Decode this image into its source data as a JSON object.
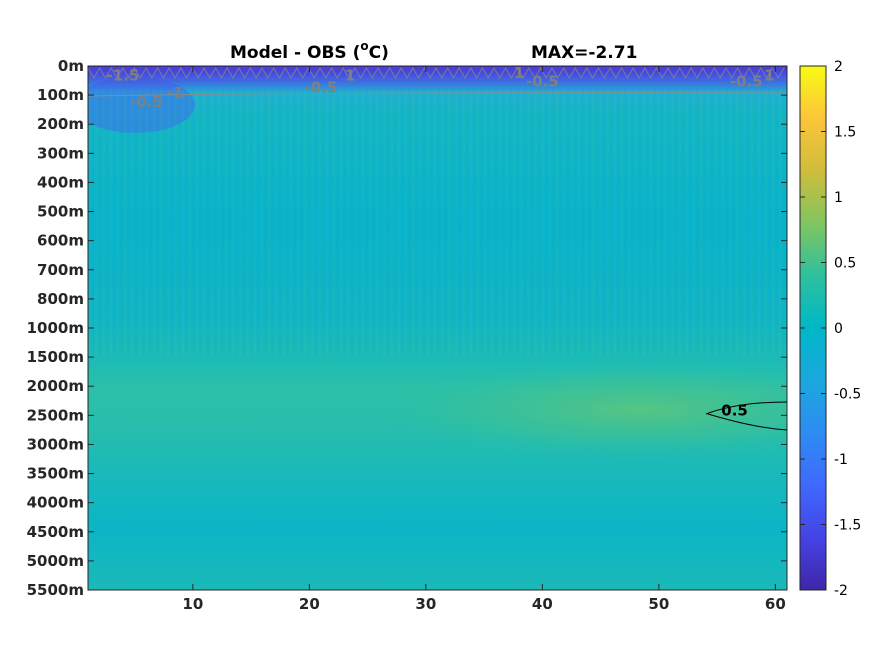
{
  "chart_data": {
    "type": "heatmap",
    "title_left": "Model - OBS (",
    "title_unit": "C)",
    "title_degree": "o",
    "title_right": "MAX=-2.71",
    "xlabel": "",
    "ylabel": "",
    "xlim": [
      1,
      61
    ],
    "x_ticks": [
      10,
      20,
      30,
      40,
      50,
      60
    ],
    "y_ticks": [
      "0m",
      "100m",
      "200m",
      "300m",
      "400m",
      "500m",
      "600m",
      "700m",
      "800m",
      "1000m",
      "1500m",
      "2000m",
      "2500m",
      "3000m",
      "3500m",
      "4000m",
      "4500m",
      "5000m",
      "5500m"
    ],
    "colorbar": {
      "colormap": "parula",
      "clim": [
        -2,
        2
      ],
      "ticks": [
        "2",
        "1.5",
        "1",
        "0.5",
        "0",
        "-0.5",
        "-1",
        "-1.5",
        "-2"
      ]
    },
    "contour_labels": [
      {
        "text": "-1.5",
        "x": 4.0,
        "depth_index": 0.3,
        "color": "grey"
      },
      {
        "text": "-0.5",
        "x": 6.0,
        "depth_index": 1.2,
        "color": "grey"
      },
      {
        "text": "-1",
        "x": 8.5,
        "depth_index": 0.9,
        "color": "grey"
      },
      {
        "text": "-0.5",
        "x": 21.0,
        "depth_index": 0.7,
        "color": "grey"
      },
      {
        "text": "1",
        "x": 23.5,
        "depth_index": 0.3,
        "color": "grey"
      },
      {
        "text": "1",
        "x": 38.0,
        "depth_index": 0.2,
        "color": "grey"
      },
      {
        "text": "-0.5",
        "x": 40.0,
        "depth_index": 0.5,
        "color": "grey"
      },
      {
        "text": "-0.5",
        "x": 57.5,
        "depth_index": 0.5,
        "color": "grey"
      },
      {
        "text": "1",
        "x": 59.5,
        "depth_index": 0.3,
        "color": "grey"
      },
      {
        "text": "0.5",
        "x": 56.5,
        "depth_index": 11.8,
        "color": "black"
      }
    ],
    "field_description_values": {
      "surface_min": -2.0,
      "upper_layer_mean": -0.3,
      "mid_depth_mean": -0.15,
      "deep_anomaly_max": 0.5,
      "bottom_mean": -0.05
    }
  }
}
